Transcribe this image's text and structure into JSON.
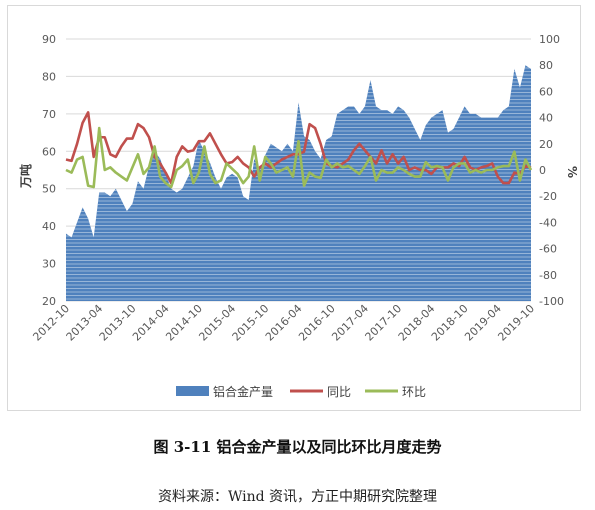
{
  "caption": "图 3-11 铝合金产量以及同比环比月度走势",
  "source": "资料来源：Wind 资讯，方正中期研究院整理",
  "colors": {
    "area": "#4f81bd",
    "yoy": "#c0504d",
    "mom": "#9bbb59",
    "grid": "#d9d9d9",
    "text": "#595959"
  },
  "chart_data": {
    "type": "area",
    "title": "",
    "ylabel": "万吨",
    "y2label": "%",
    "ylim": [
      20,
      90
    ],
    "y2lim": [
      -100,
      100
    ],
    "yticks": [
      20,
      30,
      40,
      50,
      60,
      70,
      80,
      90
    ],
    "y2ticks": [
      -100,
      -80,
      -60,
      -40,
      -20,
      0,
      20,
      40,
      60,
      80,
      100
    ],
    "xtick_labels": [
      "2012-10",
      "2013-04",
      "2013-10",
      "2014-04",
      "2014-10",
      "2015-04",
      "2015-10",
      "2016-04",
      "2016-10",
      "2017-04",
      "2017-10",
      "2018-04",
      "2018-10",
      "2019-04",
      "2019-10"
    ],
    "legend_position": "bottom",
    "grid": true,
    "x": [
      "2012-10",
      "2012-11",
      "2012-12",
      "2013-01",
      "2013-02",
      "2013-03",
      "2013-04",
      "2013-05",
      "2013-06",
      "2013-07",
      "2013-08",
      "2013-09",
      "2013-10",
      "2013-11",
      "2013-12",
      "2014-01",
      "2014-02",
      "2014-03",
      "2014-04",
      "2014-05",
      "2014-06",
      "2014-07",
      "2014-08",
      "2014-09",
      "2014-10",
      "2014-11",
      "2014-12",
      "2015-01",
      "2015-02",
      "2015-03",
      "2015-04",
      "2015-05",
      "2015-06",
      "2015-07",
      "2015-08",
      "2015-09",
      "2015-10",
      "2015-11",
      "2015-12",
      "2016-01",
      "2016-02",
      "2016-03",
      "2016-04",
      "2016-05",
      "2016-06",
      "2016-07",
      "2016-08",
      "2016-09",
      "2016-10",
      "2016-11",
      "2016-12",
      "2017-01",
      "2017-02",
      "2017-03",
      "2017-04",
      "2017-05",
      "2017-06",
      "2017-07",
      "2017-08",
      "2017-09",
      "2017-10",
      "2017-11",
      "2017-12",
      "2018-01",
      "2018-02",
      "2018-03",
      "2018-04",
      "2018-05",
      "2018-06",
      "2018-07",
      "2018-08",
      "2018-09",
      "2018-10",
      "2018-11",
      "2018-12",
      "2019-01",
      "2019-02",
      "2019-03",
      "2019-04",
      "2019-05",
      "2019-06",
      "2019-07",
      "2019-08",
      "2019-09",
      "2019-10"
    ],
    "series": [
      {
        "name": "铝合金产量",
        "type": "area",
        "values": [
          38,
          37,
          41,
          45,
          42,
          37,
          49,
          49,
          48,
          50,
          47,
          44,
          46,
          52,
          50,
          56,
          60,
          58,
          54,
          50,
          49,
          50,
          53,
          56,
          63,
          60,
          57,
          53,
          50,
          53,
          54,
          53,
          48,
          47,
          58,
          55,
          59,
          62,
          61,
          60,
          62,
          60,
          73,
          64,
          63,
          60,
          58,
          63,
          64,
          70,
          71,
          72,
          72,
          70,
          72,
          79,
          72,
          71,
          71,
          70,
          72,
          71,
          69,
          66,
          63,
          67,
          69,
          70,
          71,
          65,
          66,
          69,
          72,
          70,
          70,
          69,
          69,
          69,
          69,
          71,
          72,
          82,
          77,
          83,
          82
        ]
      },
      {
        "name": "同比",
        "type": "line",
        "values": [
          8,
          7,
          20,
          36,
          44,
          10,
          25,
          25,
          12,
          10,
          18,
          24,
          24,
          35,
          32,
          25,
          10,
          5,
          -2,
          -10,
          10,
          18,
          14,
          15,
          22,
          22,
          28,
          20,
          12,
          5,
          6,
          10,
          5,
          2,
          -5,
          2,
          5,
          2,
          5,
          8,
          10,
          12,
          12,
          14,
          35,
          32,
          20,
          5,
          3,
          2,
          5,
          8,
          15,
          20,
          15,
          10,
          5,
          15,
          5,
          12,
          5,
          10,
          0,
          2,
          0,
          0,
          -3,
          2,
          2,
          2,
          5,
          3,
          10,
          2,
          0,
          2,
          3,
          5,
          -5,
          -10,
          -10,
          -2,
          -3,
          3,
          2
        ]
      },
      {
        "name": "环比",
        "type": "line",
        "values": [
          0,
          -2,
          8,
          10,
          -12,
          -13,
          32,
          0,
          2,
          -2,
          -5,
          -8,
          2,
          12,
          -3,
          2,
          18,
          -5,
          -10,
          -13,
          0,
          3,
          8,
          -10,
          -2,
          18,
          -3,
          -10,
          -8,
          5,
          1,
          -3,
          -10,
          -5,
          18,
          -8,
          10,
          5,
          -2,
          0,
          2,
          -5,
          22,
          -12,
          -2,
          -5,
          -6,
          8,
          2,
          5,
          2,
          3,
          0,
          -3,
          3,
          10,
          -8,
          0,
          -2,
          -2,
          2,
          0,
          -3,
          -5,
          -5,
          6,
          2,
          3,
          2,
          -8,
          2,
          5,
          5,
          -2,
          0,
          -2,
          0,
          0,
          2,
          3,
          3,
          14,
          -8,
          8,
          0
        ]
      }
    ]
  }
}
